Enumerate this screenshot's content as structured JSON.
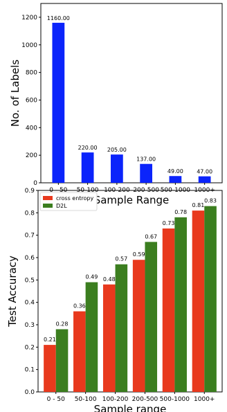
{
  "chart_data": [
    {
      "type": "bar",
      "categories": [
        "0 - 50",
        "50-100",
        "100-200",
        "200-500",
        "500-1000",
        "1000+"
      ],
      "values": [
        1160,
        220,
        205,
        137,
        49,
        47
      ],
      "value_labels": [
        "1160.00",
        "220.00",
        "205.00",
        "137.00",
        "49.00",
        "47.00"
      ],
      "xlabel": "Sample Range",
      "ylabel": "No. of Labels",
      "ylim": [
        0,
        1300
      ],
      "yticks": [
        0,
        200,
        400,
        600,
        800,
        1000,
        1200
      ],
      "color": "#0b24fb",
      "grid": false
    },
    {
      "type": "bar",
      "categories": [
        "0 - 50",
        "50-100",
        "100-200",
        "200-500",
        "500-1000",
        "1000+"
      ],
      "series": [
        {
          "name": "cross entropy",
          "values": [
            0.21,
            0.36,
            0.48,
            0.59,
            0.73,
            0.81
          ],
          "labels": [
            "0.21",
            "0.36",
            "0.48",
            "0.59",
            "0.73",
            "0.81"
          ],
          "color": "#e8391d"
        },
        {
          "name": "D2L",
          "values": [
            0.28,
            0.49,
            0.57,
            0.67,
            0.78,
            0.83
          ],
          "labels": [
            "0.28",
            "0.49",
            "0.57",
            "0.67",
            "0.78",
            "0.83"
          ],
          "color": "#3b7e1f"
        }
      ],
      "xlabel": "Sample range",
      "ylabel": "Test Accuracy",
      "ylim": [
        0,
        0.9
      ],
      "yticks": [
        "0.0",
        "0.1",
        "0.2",
        "0.3",
        "0.4",
        "0.5",
        "0.6",
        "0.7",
        "0.8",
        "0.9"
      ],
      "legend_position": "top-left",
      "grid": false
    }
  ]
}
